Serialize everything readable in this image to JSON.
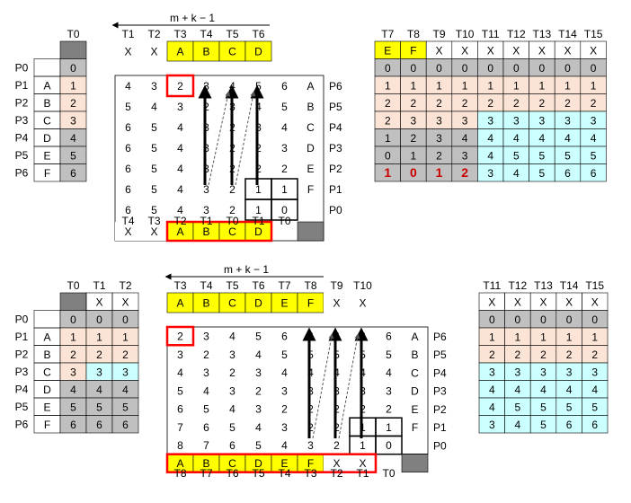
{
  "colors": {
    "grid": "#000000",
    "yellow": "#ffff00",
    "gray": "#c0c0c0",
    "darkgray": "#808080",
    "peach": "#fbe4d5",
    "cyan": "#ccffff",
    "red": "#ff0000",
    "boldred": "#cc0000"
  },
  "top": {
    "arrow_label": "m + k − 1",
    "left": {
      "header": [
        "T0"
      ],
      "rows": [
        {
          "p": "P0",
          "l": "",
          "v": [
            "0"
          ]
        },
        {
          "p": "P1",
          "l": "A",
          "v": [
            "1"
          ]
        },
        {
          "p": "P2",
          "l": "B",
          "v": [
            "2"
          ]
        },
        {
          "p": "P3",
          "l": "C",
          "v": [
            "3"
          ]
        },
        {
          "p": "P4",
          "l": "D",
          "v": [
            "4"
          ]
        },
        {
          "p": "P5",
          "l": "E",
          "v": [
            "5"
          ]
        },
        {
          "p": "P6",
          "l": "F",
          "v": [
            "6"
          ]
        }
      ]
    },
    "middle": {
      "top_header": [
        "T1",
        "T2",
        "T3",
        "T4",
        "T5",
        "T6"
      ],
      "top_seq": [
        "X",
        "X",
        "A",
        "B",
        "C",
        "D"
      ],
      "rows": [
        {
          "cells": [
            "4",
            "3",
            "2",
            "3",
            "4",
            "5",
            "6"
          ],
          "letter": "A",
          "label": "P6"
        },
        {
          "cells": [
            "5",
            "4",
            "3",
            "2",
            "3",
            "4",
            "5"
          ],
          "letter": "B",
          "label": "P5"
        },
        {
          "cells": [
            "6",
            "5",
            "4",
            "3",
            "2",
            "3",
            "4"
          ],
          "letter": "C",
          "label": "P4"
        },
        {
          "cells": [
            "6",
            "5",
            "4",
            "3",
            "2",
            "2",
            "3"
          ],
          "letter": "D",
          "label": "P3"
        },
        {
          "cells": [
            "6",
            "5",
            "4",
            "3",
            "2",
            "2",
            "2"
          ],
          "letter": "E",
          "label": "P2"
        },
        {
          "cells": [
            "6",
            "5",
            "4",
            "3",
            "2",
            "1",
            "1"
          ],
          "letter": "F",
          "label": "P1"
        },
        {
          "cells": [
            "6",
            "5",
            "4",
            "3",
            "2",
            "1",
            "0"
          ],
          "letter": "",
          "label": "P0"
        }
      ],
      "bottom_seq": [
        "X",
        "X",
        "A",
        "B",
        "C",
        "D"
      ],
      "bottom_header": [
        "T4",
        "T3",
        "T2",
        "T1",
        "T0",
        "T1",
        "T0"
      ]
    },
    "right": {
      "header": [
        "T7",
        "T8",
        "T9",
        "T10",
        "T11",
        "T12",
        "T13",
        "T14",
        "T15"
      ],
      "seq": [
        "E",
        "F",
        "X",
        "X",
        "X",
        "X",
        "X",
        "X",
        "X"
      ],
      "rows": [
        [
          "0",
          "0",
          "0",
          "0",
          "0",
          "0",
          "0",
          "0",
          "0"
        ],
        [
          "1",
          "1",
          "1",
          "1",
          "1",
          "1",
          "1",
          "1",
          "1"
        ],
        [
          "2",
          "2",
          "2",
          "2",
          "2",
          "2",
          "2",
          "2",
          "2"
        ],
        [
          "2",
          "3",
          "3",
          "3",
          "3",
          "3",
          "3",
          "3",
          "3"
        ],
        [
          "1",
          "2",
          "3",
          "4",
          "4",
          "4",
          "4",
          "4",
          "4"
        ],
        [
          "0",
          "1",
          "2",
          "3",
          "4",
          "5",
          "5",
          "5",
          "5"
        ],
        [
          "1",
          "0",
          "1",
          "2",
          "3",
          "4",
          "5",
          "6",
          "6"
        ]
      ]
    }
  },
  "bottom": {
    "arrow_label": "m + k − 1",
    "left": {
      "header": [
        "T0",
        "T1",
        "T2"
      ],
      "subheader": [
        "",
        "X",
        "X"
      ],
      "rows": [
        {
          "p": "P0",
          "l": "",
          "v": [
            "0",
            "0",
            "0"
          ]
        },
        {
          "p": "P1",
          "l": "A",
          "v": [
            "1",
            "1",
            "1"
          ]
        },
        {
          "p": "P2",
          "l": "B",
          "v": [
            "2",
            "2",
            "2"
          ]
        },
        {
          "p": "P3",
          "l": "C",
          "v": [
            "3",
            "3",
            "3"
          ]
        },
        {
          "p": "P4",
          "l": "D",
          "v": [
            "4",
            "4",
            "4"
          ]
        },
        {
          "p": "P5",
          "l": "E",
          "v": [
            "5",
            "5",
            "5"
          ]
        },
        {
          "p": "P6",
          "l": "F",
          "v": [
            "6",
            "6",
            "6"
          ]
        }
      ]
    },
    "middle": {
      "top_header": [
        "T3",
        "T4",
        "T5",
        "T6",
        "T7",
        "T8",
        "T9",
        "T10"
      ],
      "top_seq": [
        "A",
        "B",
        "C",
        "D",
        "E",
        "F",
        "X",
        "X"
      ],
      "rows": [
        {
          "cells": [
            "2",
            "3",
            "4",
            "5",
            "6",
            "6",
            "6",
            "6",
            "6"
          ],
          "letter": "A",
          "label": "P6"
        },
        {
          "cells": [
            "3",
            "2",
            "3",
            "4",
            "5",
            "5",
            "5",
            "5",
            "5"
          ],
          "letter": "B",
          "label": "P5"
        },
        {
          "cells": [
            "4",
            "3",
            "2",
            "3",
            "4",
            "4",
            "4",
            "4",
            "4"
          ],
          "letter": "C",
          "label": "P4"
        },
        {
          "cells": [
            "5",
            "4",
            "3",
            "2",
            "3",
            "3",
            "3",
            "3",
            "3"
          ],
          "letter": "D",
          "label": "P3"
        },
        {
          "cells": [
            "6",
            "5",
            "4",
            "3",
            "2",
            "2",
            "2",
            "2",
            "2"
          ],
          "letter": "E",
          "label": "P2"
        },
        {
          "cells": [
            "7",
            "6",
            "5",
            "4",
            "3",
            "2",
            "2",
            "1",
            "1"
          ],
          "letter": "F",
          "label": "P1"
        },
        {
          "cells": [
            "8",
            "7",
            "6",
            "5",
            "4",
            "3",
            "2",
            "1",
            "0"
          ],
          "letter": "",
          "label": "P0"
        }
      ],
      "bottom_seq": [
        "A",
        "B",
        "C",
        "D",
        "E",
        "F",
        "X",
        "X"
      ],
      "bottom_header": [
        "T8",
        "T7",
        "T6",
        "T5",
        "T4",
        "T3",
        "T2",
        "T1",
        "T0"
      ]
    },
    "right": {
      "header": [
        "T11",
        "T12",
        "T13",
        "T14",
        "T15"
      ],
      "seq": [
        "X",
        "X",
        "X",
        "X",
        "X"
      ],
      "rows": [
        [
          "0",
          "0",
          "0",
          "0",
          "0"
        ],
        [
          "1",
          "1",
          "1",
          "1",
          "1"
        ],
        [
          "2",
          "2",
          "2",
          "2",
          "2"
        ],
        [
          "3",
          "3",
          "3",
          "3",
          "3"
        ],
        [
          "4",
          "4",
          "4",
          "4",
          "4"
        ],
        [
          "4",
          "5",
          "5",
          "5",
          "5"
        ],
        [
          "3",
          "4",
          "5",
          "6",
          "6"
        ]
      ]
    }
  }
}
